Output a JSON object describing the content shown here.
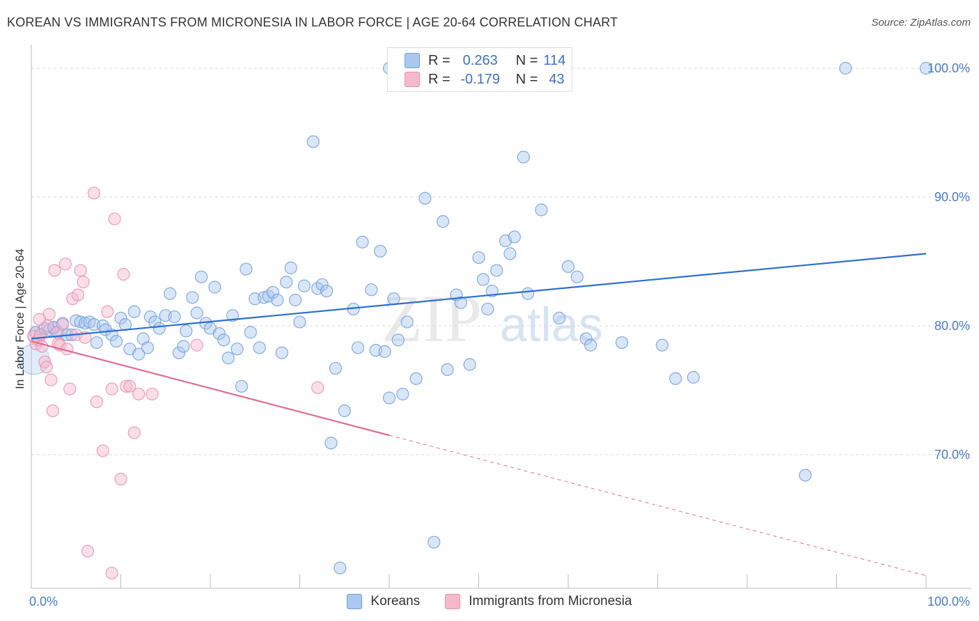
{
  "title": "KOREAN VS IMMIGRANTS FROM MICRONESIA IN LABOR FORCE | AGE 20-64 CORRELATION CHART",
  "source": "Source: ZipAtlas.com",
  "watermark": {
    "zip": "ZIP",
    "atlas": "atlas"
  },
  "legend_top": {
    "r_label": "R =",
    "n_label": "N =",
    "rows": [
      {
        "r": "0.263",
        "n": "114",
        "color": "#aac8f0"
      },
      {
        "r": "-0.179",
        "n": "43",
        "color": "#f6b9cc"
      }
    ]
  },
  "legend_bottom": [
    {
      "label": "Koreans",
      "color": "#aac8f0"
    },
    {
      "label": "Immigrants from Micronesia",
      "color": "#f6b9cc"
    }
  ],
  "chart_data": {
    "type": "scatter",
    "xlabel": "",
    "ylabel": "In Labor Force | Age 20-64",
    "xlim": [
      0,
      100
    ],
    "ylim": [
      60.5,
      101
    ],
    "x_tick_labels": [
      "0.0%",
      "100.0%"
    ],
    "y_ticks": [
      {
        "value": 70,
        "label": "70.0%"
      },
      {
        "value": 80,
        "label": "80.0%"
      },
      {
        "value": 90,
        "label": "90.0%"
      },
      {
        "value": 100,
        "label": "100.0%"
      }
    ],
    "grid": true,
    "colors": {
      "koreans_fill": "#aac8f0",
      "koreans_edge": "#6f9fdc",
      "koreans_line": "#2d6fcc",
      "micronesia_fill": "#f6b9cc",
      "micronesia_edge": "#ea8fac",
      "micronesia_line": "#e06a93"
    },
    "series": [
      {
        "name": "Koreans",
        "trend": {
          "x0": 0,
          "y0": 79.0,
          "x1": 100,
          "y1": 85.6
        },
        "points": [
          [
            0.5,
            79.5
          ],
          [
            1,
            79.3
          ],
          [
            1.5,
            79.8
          ],
          [
            2,
            79.7
          ],
          [
            2.5,
            79.8
          ],
          [
            3,
            79.5
          ],
          [
            3.5,
            80.2
          ],
          [
            4,
            79.3
          ],
          [
            4.5,
            79.3
          ],
          [
            5,
            80.4
          ],
          [
            5.5,
            80.3
          ],
          [
            6,
            80.2
          ],
          [
            6.5,
            80.3
          ],
          [
            7,
            80.1
          ],
          [
            7.3,
            78.7
          ],
          [
            8,
            80.0
          ],
          [
            8.3,
            79.7
          ],
          [
            9,
            79.3
          ],
          [
            9.5,
            78.8
          ],
          [
            10,
            80.6
          ],
          [
            10.5,
            80.1
          ],
          [
            11,
            78.2
          ],
          [
            11.5,
            81.1
          ],
          [
            12,
            77.8
          ],
          [
            12.5,
            79.0
          ],
          [
            13,
            78.3
          ],
          [
            13.3,
            80.7
          ],
          [
            13.8,
            80.3
          ],
          [
            14.3,
            79.8
          ],
          [
            15,
            80.8
          ],
          [
            15.5,
            82.5
          ],
          [
            16,
            80.7
          ],
          [
            16.5,
            77.9
          ],
          [
            17,
            78.4
          ],
          [
            17.3,
            79.6
          ],
          [
            18,
            82.2
          ],
          [
            18.5,
            81.0
          ],
          [
            19,
            83.8
          ],
          [
            19.5,
            80.2
          ],
          [
            20,
            79.8
          ],
          [
            20.5,
            83.0
          ],
          [
            21,
            79.4
          ],
          [
            21.5,
            78.9
          ],
          [
            22,
            77.5
          ],
          [
            22.5,
            80.8
          ],
          [
            23,
            78.2
          ],
          [
            23.5,
            75.3
          ],
          [
            24,
            84.4
          ],
          [
            24.5,
            79.5
          ],
          [
            25,
            82.1
          ],
          [
            25.5,
            78.3
          ],
          [
            26,
            82.2
          ],
          [
            26.5,
            82.3
          ],
          [
            27,
            82.6
          ],
          [
            27.5,
            82.0
          ],
          [
            28,
            77.9
          ],
          [
            28.5,
            83.4
          ],
          [
            29,
            84.5
          ],
          [
            29.5,
            82.0
          ],
          [
            30,
            80.3
          ],
          [
            30.5,
            83.1
          ],
          [
            31.5,
            94.3
          ],
          [
            32,
            82.9
          ],
          [
            32.5,
            83.2
          ],
          [
            33,
            82.7
          ],
          [
            34,
            76.7
          ],
          [
            33.5,
            70.9
          ],
          [
            35,
            73.4
          ],
          [
            36,
            81.3
          ],
          [
            36.5,
            78.3
          ],
          [
            37,
            86.5
          ],
          [
            38,
            82.8
          ],
          [
            38.5,
            78.1
          ],
          [
            39,
            85.8
          ],
          [
            39.5,
            78.0
          ],
          [
            40,
            74.4
          ],
          [
            40.5,
            82.1
          ],
          [
            41,
            78.9
          ],
          [
            41.5,
            74.7
          ],
          [
            42,
            80.3
          ],
          [
            43,
            75.9
          ],
          [
            44,
            89.9
          ],
          [
            45,
            63.2
          ],
          [
            46,
            88.1
          ],
          [
            46.5,
            76.6
          ],
          [
            47.5,
            82.4
          ],
          [
            48,
            81.8
          ],
          [
            49,
            77.0
          ],
          [
            50,
            85.3
          ],
          [
            50.5,
            83.6
          ],
          [
            51,
            81.3
          ],
          [
            51.5,
            82.7
          ],
          [
            52,
            84.3
          ],
          [
            53,
            86.6
          ],
          [
            53.5,
            85.6
          ],
          [
            54,
            86.9
          ],
          [
            55,
            93.1
          ],
          [
            55.5,
            82.5
          ],
          [
            57,
            89.0
          ],
          [
            59,
            80.6
          ],
          [
            60,
            84.6
          ],
          [
            61,
            83.8
          ],
          [
            62,
            79.0
          ],
          [
            62.5,
            78.5
          ],
          [
            66,
            78.7
          ],
          [
            70.5,
            78.5
          ],
          [
            72,
            75.9
          ],
          [
            74,
            76.0
          ],
          [
            86.5,
            68.4
          ],
          [
            91,
            100.0
          ],
          [
            100,
            100.0
          ],
          [
            34.5,
            61.2
          ],
          [
            40,
            100.0
          ],
          [
            2.5,
            79.9
          ]
        ]
      },
      {
        "name": "Immigrants from Micronesia",
        "trend": {
          "x0": 0,
          "y0": 78.8,
          "x1": 40,
          "y1": 71.5,
          "dash_to_x": 100,
          "dash_to_y": 60.6
        },
        "points": [
          [
            0.3,
            79.2
          ],
          [
            0.5,
            78.6
          ],
          [
            0.8,
            78.9
          ],
          [
            1,
            79.3
          ],
          [
            1.2,
            78.4
          ],
          [
            1.5,
            77.2
          ],
          [
            1.7,
            76.8
          ],
          [
            2,
            80.9
          ],
          [
            2.2,
            75.8
          ],
          [
            2.4,
            73.4
          ],
          [
            2.6,
            84.3
          ],
          [
            2.8,
            79.5
          ],
          [
            3,
            78.6
          ],
          [
            3.2,
            78.5
          ],
          [
            3.5,
            80.1
          ],
          [
            3.8,
            84.8
          ],
          [
            4,
            78.2
          ],
          [
            4.3,
            75.1
          ],
          [
            4.6,
            82.1
          ],
          [
            5,
            79.3
          ],
          [
            5.2,
            82.4
          ],
          [
            5.5,
            84.3
          ],
          [
            5.8,
            83.4
          ],
          [
            6,
            79.1
          ],
          [
            6.3,
            62.5
          ],
          [
            7,
            90.3
          ],
          [
            7.3,
            74.1
          ],
          [
            8,
            70.3
          ],
          [
            8.5,
            81.1
          ],
          [
            9,
            75.1
          ],
          [
            9.3,
            88.3
          ],
          [
            10,
            68.1
          ],
          [
            10.3,
            84.0
          ],
          [
            10.6,
            75.3
          ],
          [
            11,
            75.3
          ],
          [
            11.5,
            71.7
          ],
          [
            12,
            74.7
          ],
          [
            13.5,
            74.7
          ],
          [
            18.5,
            78.5
          ],
          [
            32,
            75.2
          ],
          [
            9,
            60.8
          ],
          [
            1.8,
            80.0
          ],
          [
            0.9,
            80.5
          ]
        ]
      }
    ]
  }
}
